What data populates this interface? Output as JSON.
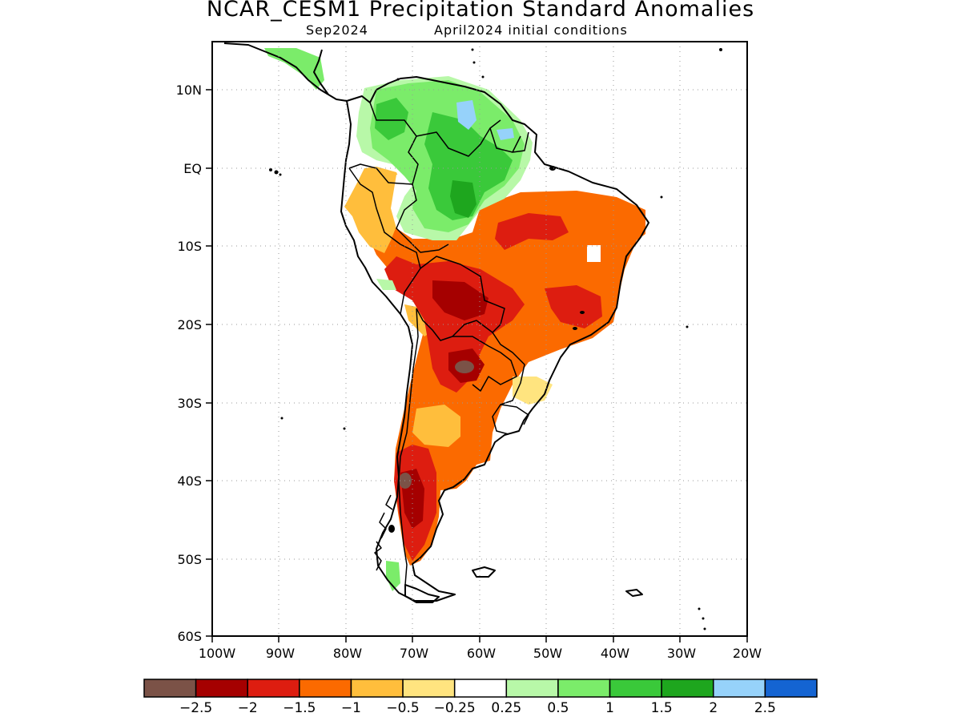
{
  "title": "NCAR_CESM1 Precipitation Standard Anomalies",
  "subtitle_left": "Sep2024",
  "subtitle_right": "April2024 initial conditions",
  "lat_labels": [
    "10N",
    "EQ",
    "10S",
    "20S",
    "30S",
    "40S",
    "50S",
    "60S"
  ],
  "lon_labels": [
    "100W",
    "90W",
    "80W",
    "70W",
    "60W",
    "50W",
    "40W",
    "30W",
    "20W"
  ],
  "colorbar": {
    "colors": [
      "#7b5247",
      "#a50000",
      "#dd1d10",
      "#fb6a00",
      "#ffbe3c",
      "#ffe47f",
      "#ffffff",
      "#b8f8a8",
      "#7bec6a",
      "#3ac93a",
      "#1ea61e",
      "#96d2fa",
      "#1464d2"
    ],
    "labels": [
      "-2.5",
      "-2",
      "-1.5",
      "-1",
      "-0.5",
      "-0.25",
      "0.25",
      "0.5",
      "1",
      "1.5",
      "2",
      "2.5"
    ]
  }
}
